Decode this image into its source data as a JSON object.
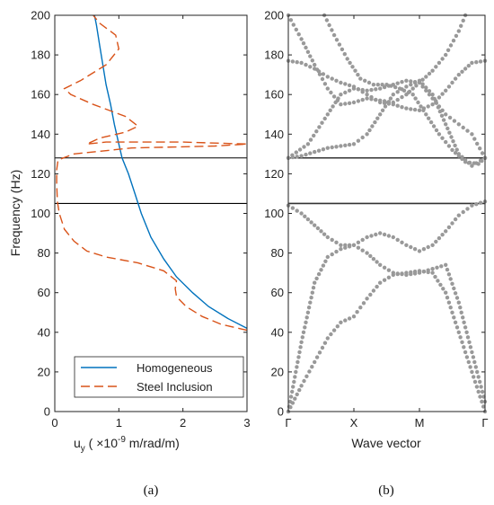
{
  "colors": {
    "homogeneous": "#0072BD",
    "steel": "#D95319",
    "dispersion": "#999999",
    "gapline": "#000000"
  },
  "chart_data": [
    {
      "type": "line",
      "caption": "(a)",
      "xlabel": "u",
      "xlabel_sub": "y",
      "xlabel_rest": " ( ×10",
      "xlabel_sup": "-9",
      "xlabel_end": " m/rad/m)",
      "ylabel": "Frequency (Hz)",
      "xlim": [
        0,
        3
      ],
      "ylim": [
        0,
        200
      ],
      "xticks": [
        0,
        1,
        2,
        3
      ],
      "yticks": [
        0,
        20,
        40,
        60,
        80,
        100,
        120,
        140,
        160,
        180,
        200
      ],
      "legend_position": "bottom-right",
      "hlines": [
        105,
        128
      ],
      "series": [
        {
          "name": "Homogeneous",
          "style": "solid",
          "points": [
            [
              3.0,
              42
            ],
            [
              2.7,
              47
            ],
            [
              2.4,
              53
            ],
            [
              2.15,
              60
            ],
            [
              1.9,
              68
            ],
            [
              1.7,
              77
            ],
            [
              1.5,
              88
            ],
            [
              1.35,
              100
            ],
            [
              1.25,
              110
            ],
            [
              1.15,
              120
            ],
            [
              1.05,
              128
            ],
            [
              1.0,
              135
            ],
            [
              0.93,
              145
            ],
            [
              0.87,
              155
            ],
            [
              0.8,
              165
            ],
            [
              0.75,
              175
            ],
            [
              0.7,
              185
            ],
            [
              0.65,
              195
            ],
            [
              0.62,
              200
            ]
          ]
        },
        {
          "name": "Steel Inclusion",
          "style": "dashed",
          "points": [
            [
              3.0,
              41
            ],
            [
              2.6,
              44
            ],
            [
              2.3,
              48
            ],
            [
              2.05,
              53
            ],
            [
              1.9,
              58
            ],
            [
              1.88,
              62
            ],
            [
              1.9,
              66
            ],
            [
              1.7,
              71
            ],
            [
              1.3,
              75
            ],
            [
              0.8,
              78
            ],
            [
              0.5,
              81
            ],
            [
              0.3,
              86
            ],
            [
              0.15,
              92
            ],
            [
              0.07,
              100
            ],
            [
              0.04,
              106
            ],
            [
              0.03,
              115
            ],
            [
              0.03,
              122
            ],
            [
              0.05,
              127
            ],
            [
              0.3,
              130
            ],
            [
              1.2,
              133
            ],
            [
              2.5,
              134
            ],
            [
              3.0,
              135
            ],
            [
              2.0,
              136
            ],
            [
              0.8,
              136
            ],
            [
              0.5,
              135
            ],
            [
              0.7,
              138
            ],
            [
              1.1,
              141
            ],
            [
              1.3,
              144
            ],
            [
              1.1,
              149
            ],
            [
              0.6,
              155
            ],
            [
              0.25,
              160
            ],
            [
              0.15,
              163
            ],
            [
              0.4,
              167
            ],
            [
              0.8,
              175
            ],
            [
              1.0,
              183
            ],
            [
              0.95,
              190
            ],
            [
              0.7,
              196
            ],
            [
              0.6,
              200
            ]
          ]
        }
      ]
    },
    {
      "type": "scatter",
      "caption": "(b)",
      "xlabel": "Wave vector",
      "ylabel": "",
      "xlim": [
        0,
        3
      ],
      "ylim": [
        0,
        200
      ],
      "xtick_values": [
        0,
        1,
        2,
        3
      ],
      "xtick_labels": [
        "Γ",
        "X",
        "M",
        "Γ"
      ],
      "yticks": [
        0,
        20,
        40,
        60,
        80,
        100,
        120,
        140,
        160,
        180,
        200
      ],
      "hlines": [
        105,
        128
      ],
      "series": [
        {
          "values": [
            [
              0,
              0
            ],
            [
              0.2,
              13
            ],
            [
              0.4,
              25
            ],
            [
              0.6,
              37
            ],
            [
              0.8,
              45
            ],
            [
              1.0,
              48
            ],
            [
              1.2,
              57
            ],
            [
              1.4,
              65
            ],
            [
              1.6,
              69
            ],
            [
              1.8,
              70
            ],
            [
              2.0,
              71
            ],
            [
              2.2,
              70
            ],
            [
              2.4,
              60
            ],
            [
              2.6,
              40
            ],
            [
              2.8,
              20
            ],
            [
              3.0,
              0
            ]
          ]
        },
        {
          "values": [
            [
              0,
              0
            ],
            [
              0.2,
              35
            ],
            [
              0.4,
              65
            ],
            [
              0.6,
              78
            ],
            [
              0.8,
              82
            ],
            [
              1.0,
              84
            ],
            [
              1.2,
              80
            ],
            [
              1.4,
              74
            ],
            [
              1.6,
              70
            ],
            [
              1.8,
              69
            ],
            [
              2.0,
              70
            ],
            [
              2.2,
              72
            ],
            [
              2.4,
              74
            ],
            [
              2.6,
              55
            ],
            [
              2.8,
              30
            ],
            [
              3.0,
              5
            ]
          ]
        },
        {
          "values": [
            [
              0,
              104
            ],
            [
              0.2,
              100
            ],
            [
              0.4,
              94
            ],
            [
              0.6,
              88
            ],
            [
              0.8,
              84
            ],
            [
              1.0,
              84
            ],
            [
              1.2,
              88
            ],
            [
              1.4,
              90
            ],
            [
              1.6,
              88
            ],
            [
              1.8,
              84
            ],
            [
              2.0,
              81
            ],
            [
              2.2,
              84
            ],
            [
              2.4,
              91
            ],
            [
              2.6,
              99
            ],
            [
              2.8,
              104
            ],
            [
              3.0,
              106
            ]
          ]
        },
        {
          "values": [
            [
              0,
              128
            ],
            [
              0.2,
              129
            ],
            [
              0.4,
              131
            ],
            [
              0.6,
              133
            ],
            [
              0.8,
              134
            ],
            [
              1.0,
              135
            ],
            [
              1.2,
              140
            ],
            [
              1.4,
              150
            ],
            [
              1.6,
              160
            ],
            [
              1.8,
              164
            ],
            [
              2.0,
              167
            ],
            [
              2.2,
              160
            ],
            [
              2.4,
              145
            ],
            [
              2.6,
              130
            ],
            [
              2.8,
              124
            ],
            [
              3.0,
              128
            ]
          ]
        },
        {
          "values": [
            [
              0,
              128
            ],
            [
              0.3,
              135
            ],
            [
              0.6,
              150
            ],
            [
              0.8,
              160
            ],
            [
              1.0,
              163
            ],
            [
              1.2,
              162
            ],
            [
              1.4,
              163
            ],
            [
              1.6,
              165
            ],
            [
              1.8,
              167
            ],
            [
              2.0,
              166
            ],
            [
              2.2,
              158
            ],
            [
              2.4,
              150
            ],
            [
              2.6,
              145
            ],
            [
              2.8,
              140
            ],
            [
              3.0,
              128
            ]
          ]
        },
        {
          "values": [
            [
              0,
              177
            ],
            [
              0.2,
              176
            ],
            [
              0.4,
              173
            ],
            [
              0.6,
              169
            ],
            [
              0.8,
              166
            ],
            [
              1.0,
              164
            ],
            [
              1.2,
              160
            ],
            [
              1.4,
              156
            ],
            [
              1.6,
              155
            ],
            [
              1.8,
              153
            ],
            [
              2.0,
              152
            ],
            [
              2.2,
              155
            ],
            [
              2.4,
              162
            ],
            [
              2.6,
              170
            ],
            [
              2.8,
              176
            ],
            [
              3.0,
              177
            ]
          ]
        },
        {
          "values": [
            [
              0,
              200
            ],
            [
              0.2,
              188
            ],
            [
              0.4,
              175
            ],
            [
              0.6,
              163
            ],
            [
              0.8,
              155
            ],
            [
              1.0,
              156
            ],
            [
              1.2,
              158
            ],
            [
              1.4,
              157
            ],
            [
              1.6,
              156
            ],
            [
              1.8,
              160
            ],
            [
              2.0,
              166
            ],
            [
              2.2,
              172
            ],
            [
              2.4,
              180
            ],
            [
              2.6,
              192
            ],
            [
              2.7,
              200
            ]
          ]
        },
        {
          "values": [
            [
              0.55,
              200
            ],
            [
              0.7,
              190
            ],
            [
              0.9,
              178
            ],
            [
              1.1,
              168
            ],
            [
              1.3,
              165
            ],
            [
              1.5,
              165
            ],
            [
              1.7,
              163
            ],
            [
              1.9,
              160
            ],
            [
              2.1,
              150
            ],
            [
              2.3,
              140
            ],
            [
              2.5,
              132
            ],
            [
              2.7,
              126
            ],
            [
              2.9,
              125
            ],
            [
              3.0,
              128
            ]
          ]
        }
      ]
    }
  ]
}
